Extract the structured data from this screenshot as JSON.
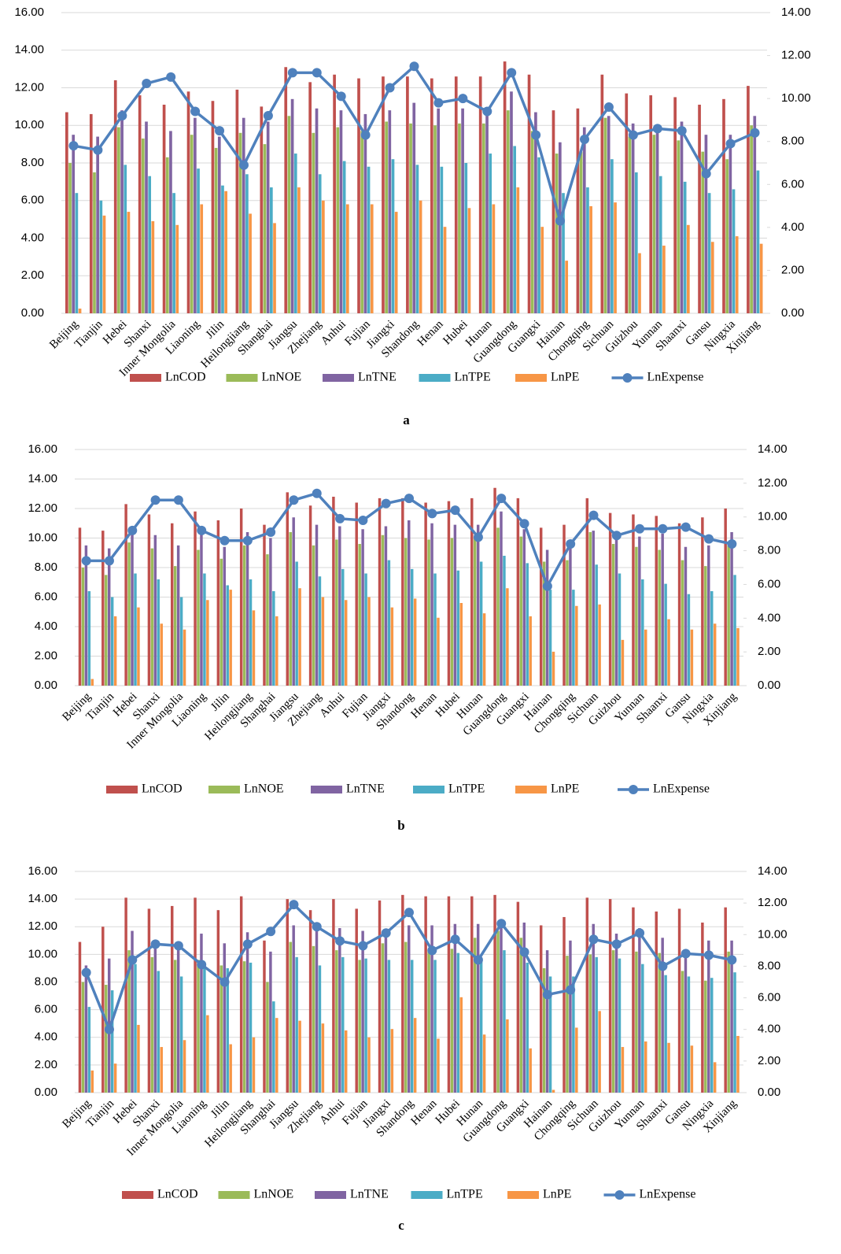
{
  "chart_data": [
    {
      "type": "bar",
      "label": "a",
      "categories": [
        "Beijing",
        "Tianjin",
        "Hebei",
        "Shanxi",
        "Inner Mongolia",
        "Liaoning",
        "Jilin",
        "Heilongjiang",
        "Shanghai",
        "Jiangsu",
        "Zhejiang",
        "Anhui",
        "Fujian",
        "Jiangxi",
        "Shandong",
        "Henan",
        "Hubei",
        "Hunan",
        "Guangdong",
        "Guangxi",
        "Hainan",
        "Chongqing",
        "Sichuan",
        "Guizhou",
        "Yunnan",
        "Shaanxi",
        "Gansu",
        "Ningxia",
        "Xinjiang"
      ],
      "ylim": [
        0,
        16
      ],
      "yticks": [
        {
          "value": 0,
          "label": "0.00"
        },
        {
          "value": 2,
          "label": "2.00"
        },
        {
          "value": 4,
          "label": "4.00"
        },
        {
          "value": 6,
          "label": "6.00"
        },
        {
          "value": 8,
          "label": "8.00"
        },
        {
          "value": 10,
          "label": "10.00"
        },
        {
          "value": 12,
          "label": "12.00"
        },
        {
          "value": 14,
          "label": "14.00"
        },
        {
          "value": 16,
          "label": "16.00"
        }
      ],
      "y2lim": [
        0,
        14
      ],
      "y2ticks": [
        {
          "value": 0,
          "label": "0.00"
        },
        {
          "value": 2,
          "label": "2.00"
        },
        {
          "value": 4,
          "label": "4.00"
        },
        {
          "value": 6,
          "label": "6.00"
        },
        {
          "value": 8,
          "label": "8.00"
        },
        {
          "value": 10,
          "label": "10.00"
        },
        {
          "value": 12,
          "label": "12.00"
        },
        {
          "value": 14,
          "label": "14.00"
        }
      ],
      "series": [
        {
          "name": "LnCOD",
          "color": "#c0504d",
          "values": [
            10.7,
            10.6,
            12.4,
            11.6,
            11.1,
            11.8,
            11.3,
            11.9,
            11.0,
            13.1,
            12.3,
            12.7,
            12.5,
            12.6,
            12.6,
            12.5,
            12.6,
            12.6,
            13.4,
            12.7,
            10.8,
            10.9,
            12.7,
            11.7,
            11.6,
            11.5,
            11.1,
            11.4,
            12.1
          ]
        },
        {
          "name": "LnNOE",
          "color": "#9bbb59",
          "values": [
            8.0,
            7.5,
            9.9,
            9.3,
            8.3,
            9.5,
            8.8,
            9.6,
            9.0,
            10.5,
            9.6,
            9.9,
            9.7,
            10.2,
            10.1,
            10.0,
            10.1,
            10.1,
            10.8,
            9.7,
            8.5,
            8.6,
            10.4,
            9.4,
            9.5,
            9.2,
            8.6,
            8.2,
            10.0
          ]
        },
        {
          "name": "LnTNE",
          "color": "#8064a2",
          "values": [
            9.5,
            9.4,
            10.8,
            10.2,
            9.7,
            10.4,
            9.4,
            10.4,
            10.2,
            11.4,
            10.9,
            10.8,
            10.6,
            10.8,
            11.2,
            10.9,
            10.9,
            10.9,
            11.8,
            10.7,
            9.1,
            9.9,
            10.5,
            10.1,
            9.9,
            10.2,
            9.5,
            9.5,
            10.5
          ]
        },
        {
          "name": "LnTPE",
          "color": "#4bacc6",
          "values": [
            6.4,
            6.0,
            7.9,
            7.3,
            6.4,
            7.7,
            6.8,
            7.4,
            6.7,
            8.5,
            7.4,
            8.1,
            7.8,
            8.2,
            7.9,
            7.8,
            8.0,
            8.5,
            8.9,
            8.3,
            6.4,
            6.7,
            8.2,
            7.5,
            7.3,
            7.0,
            6.4,
            6.6,
            7.6
          ]
        },
        {
          "name": "LnPE",
          "color": "#f79646",
          "values": [
            0.25,
            5.2,
            5.4,
            4.9,
            4.7,
            5.8,
            6.5,
            5.3,
            4.8,
            6.7,
            6.0,
            5.8,
            5.8,
            5.4,
            6.0,
            4.6,
            5.6,
            5.8,
            6.7,
            4.6,
            2.8,
            5.7,
            5.9,
            3.2,
            3.6,
            4.7,
            3.8,
            4.1,
            3.7
          ]
        },
        {
          "name": "LnExpense",
          "color": "#4f81bd",
          "type": "line",
          "axis": "y2",
          "values": [
            7.8,
            7.6,
            9.2,
            10.7,
            11.0,
            9.4,
            8.5,
            6.9,
            9.2,
            11.2,
            11.2,
            10.1,
            8.3,
            10.5,
            11.5,
            9.8,
            10.0,
            9.4,
            11.2,
            8.3,
            4.3,
            8.1,
            9.6,
            8.3,
            8.6,
            8.5,
            6.5,
            7.9,
            8.4
          ]
        }
      ]
    },
    {
      "type": "bar",
      "label": "b",
      "categories": [
        "Beijing",
        "Tianjin",
        "Hebei",
        "Shanxi",
        "Inner Mongolia",
        "Liaoning",
        "Jilin",
        "Heilongjiang",
        "Shanghai",
        "Jiangsu",
        "Zhejiang",
        "Anhui",
        "Fujian",
        "Jiangxi",
        "Shandong",
        "Henan",
        "Hubei",
        "Hunan",
        "Guangdong",
        "Guangxi",
        "Hainan",
        "Chongqing",
        "Sichuan",
        "Guizhou",
        "Yunnan",
        "Shaanxi",
        "Gansu",
        "Ningxia",
        "Xinjiang"
      ],
      "ylim": [
        0,
        16
      ],
      "yticks": [
        {
          "value": 0,
          "label": "0.00"
        },
        {
          "value": 2,
          "label": "2.00"
        },
        {
          "value": 4,
          "label": "4.00"
        },
        {
          "value": 6,
          "label": "6.00"
        },
        {
          "value": 8,
          "label": "8.00"
        },
        {
          "value": 10,
          "label": "10.00"
        },
        {
          "value": 12,
          "label": "12.00"
        },
        {
          "value": 14,
          "label": "14.00"
        },
        {
          "value": 16,
          "label": "16.00"
        }
      ],
      "y2lim": [
        0,
        14
      ],
      "y2ticks": [
        {
          "value": 0,
          "label": "0.00"
        },
        {
          "value": 2,
          "label": "2.00"
        },
        {
          "value": 4,
          "label": "4.00"
        },
        {
          "value": 6,
          "label": "6.00"
        },
        {
          "value": 8,
          "label": "8.00"
        },
        {
          "value": 10,
          "label": "10.00"
        },
        {
          "value": 12,
          "label": "12.00"
        },
        {
          "value": 14,
          "label": "14.00"
        }
      ],
      "series": [
        {
          "name": "LnCOD",
          "color": "#c0504d",
          "values": [
            10.7,
            10.5,
            12.3,
            11.6,
            11.0,
            11.8,
            11.2,
            12.0,
            10.9,
            13.1,
            12.2,
            12.8,
            12.4,
            12.7,
            12.7,
            12.4,
            12.5,
            12.7,
            13.4,
            12.7,
            10.7,
            10.9,
            12.7,
            11.7,
            11.6,
            11.5,
            11.0,
            11.4,
            12.0
          ]
        },
        {
          "name": "LnNOE",
          "color": "#9bbb59",
          "values": [
            8.0,
            7.5,
            9.7,
            9.3,
            8.1,
            9.2,
            8.6,
            9.5,
            8.9,
            10.4,
            9.5,
            9.9,
            9.6,
            10.2,
            10.0,
            9.9,
            10.0,
            10.1,
            10.7,
            10.1,
            8.4,
            8.5,
            10.4,
            9.6,
            9.4,
            9.2,
            8.5,
            8.1,
            9.5
          ]
        },
        {
          "name": "LnTNE",
          "color": "#8064a2",
          "values": [
            9.5,
            9.3,
            10.6,
            10.2,
            9.5,
            10.3,
            9.4,
            10.4,
            10.0,
            11.4,
            10.9,
            10.8,
            10.6,
            10.8,
            11.2,
            11.0,
            10.9,
            10.9,
            11.8,
            10.6,
            9.2,
            9.8,
            10.5,
            10.0,
            10.1,
            10.3,
            9.4,
            9.5,
            10.4
          ]
        },
        {
          "name": "LnTPE",
          "color": "#4bacc6",
          "values": [
            6.4,
            6.0,
            7.6,
            7.2,
            6.0,
            7.6,
            6.8,
            7.2,
            6.4,
            8.4,
            7.4,
            7.9,
            7.6,
            8.5,
            7.9,
            7.6,
            7.8,
            8.4,
            8.8,
            8.3,
            6.5,
            6.5,
            8.2,
            7.6,
            7.2,
            6.9,
            6.2,
            6.4,
            7.5
          ]
        },
        {
          "name": "LnPE",
          "color": "#f79646",
          "values": [
            0.45,
            4.7,
            5.3,
            4.2,
            3.8,
            5.8,
            6.5,
            5.1,
            4.7,
            6.6,
            6.0,
            5.8,
            6.0,
            5.3,
            5.9,
            4.6,
            5.6,
            4.9,
            6.6,
            4.7,
            2.3,
            5.4,
            5.5,
            3.1,
            3.8,
            4.5,
            3.8,
            4.2,
            3.9
          ]
        },
        {
          "name": "LnExpense",
          "color": "#4f81bd",
          "type": "line",
          "axis": "y2",
          "values": [
            7.4,
            7.4,
            9.2,
            11.0,
            11.0,
            9.2,
            8.6,
            8.6,
            9.1,
            11.0,
            11.4,
            9.9,
            9.8,
            10.8,
            11.1,
            10.2,
            10.4,
            8.8,
            11.1,
            9.6,
            5.9,
            8.4,
            10.1,
            8.9,
            9.3,
            9.3,
            9.4,
            8.7,
            8.4
          ]
        }
      ]
    },
    {
      "type": "bar",
      "label": "c",
      "categories": [
        "Beijing",
        "Tianjin",
        "Hebei",
        "Shanxi",
        "Inner Mongolia",
        "Liaoning",
        "Jilin",
        "Heilongjiang",
        "Shanghai",
        "Jiangsu",
        "Zhejiang",
        "Anhui",
        "Fujian",
        "Jiangxi",
        "Shandong",
        "Henan",
        "Hubei",
        "Hunan",
        "Guangdong",
        "Guangxi",
        "Hainan",
        "Chongqing",
        "Sichuan",
        "Guizhou",
        "Yunnan",
        "Shaanxi",
        "Gansu",
        "Ningxia",
        "Xinjiang"
      ],
      "ylim": [
        0,
        16
      ],
      "yticks": [
        {
          "value": 0,
          "label": "0.00"
        },
        {
          "value": 2,
          "label": "2.00"
        },
        {
          "value": 4,
          "label": "4.00"
        },
        {
          "value": 6,
          "label": "6.00"
        },
        {
          "value": 8,
          "label": "8.00"
        },
        {
          "value": 10,
          "label": "10.00"
        },
        {
          "value": 12,
          "label": "12.00"
        },
        {
          "value": 14,
          "label": "14.00"
        },
        {
          "value": 16,
          "label": "16.00"
        }
      ],
      "y2lim": [
        0,
        14
      ],
      "y2ticks": [
        {
          "value": 0,
          "label": "0.00"
        },
        {
          "value": 2,
          "label": "2.00"
        },
        {
          "value": 4,
          "label": "4.00"
        },
        {
          "value": 6,
          "label": "6.00"
        },
        {
          "value": 8,
          "label": "8.00"
        },
        {
          "value": 10,
          "label": "10.00"
        },
        {
          "value": 12,
          "label": "12.00"
        },
        {
          "value": 14,
          "label": "14.00"
        }
      ],
      "series": [
        {
          "name": "LnCOD",
          "color": "#c0504d",
          "values": [
            10.9,
            12.0,
            14.1,
            13.3,
            13.5,
            14.1,
            13.2,
            14.2,
            11.0,
            14.0,
            13.2,
            14.0,
            13.3,
            13.9,
            14.3,
            14.2,
            14.2,
            14.2,
            14.3,
            13.8,
            12.1,
            12.7,
            14.1,
            14.0,
            13.4,
            13.1,
            13.3,
            12.3,
            13.4
          ]
        },
        {
          "name": "LnNOE",
          "color": "#9bbb59",
          "values": [
            8.0,
            7.8,
            10.3,
            9.8,
            9.6,
            9.6,
            9.2,
            9.5,
            8.0,
            10.9,
            10.6,
            10.3,
            9.6,
            10.8,
            10.9,
            10.3,
            10.4,
            11.2,
            11.7,
            11.2,
            9.0,
            9.9,
            10.0,
            10.3,
            10.2,
            10.1,
            8.8,
            8.1,
            10.2
          ]
        },
        {
          "name": "LnTNE",
          "color": "#8064a2",
          "values": [
            9.2,
            9.7,
            11.7,
            11.0,
            10.7,
            11.5,
            10.8,
            11.6,
            10.2,
            12.1,
            11.8,
            11.9,
            11.7,
            11.7,
            12.1,
            12.1,
            12.2,
            12.2,
            12.5,
            12.3,
            10.3,
            11.0,
            12.2,
            11.5,
            11.9,
            11.2,
            10.1,
            11.0,
            11.0
          ]
        },
        {
          "name": "LnTPE",
          "color": "#4bacc6",
          "values": [
            6.2,
            7.4,
            9.3,
            8.8,
            8.4,
            9.1,
            9.0,
            9.4,
            6.6,
            9.8,
            9.2,
            9.8,
            9.7,
            9.6,
            9.6,
            9.6,
            10.1,
            9.7,
            10.3,
            9.4,
            8.4,
            8.4,
            9.8,
            9.7,
            9.3,
            8.5,
            8.4,
            8.3,
            8.7
          ]
        },
        {
          "name": "LnPE",
          "color": "#f79646",
          "values": [
            1.6,
            2.1,
            4.9,
            3.3,
            3.8,
            5.6,
            3.5,
            4.0,
            5.4,
            5.2,
            5.0,
            4.5,
            4.0,
            4.6,
            5.4,
            3.9,
            6.9,
            4.2,
            5.3,
            3.2,
            0.2,
            4.7,
            5.9,
            3.3,
            3.7,
            3.6,
            3.4,
            2.2,
            4.1
          ]
        },
        {
          "name": "LnExpense",
          "color": "#4f81bd",
          "type": "line",
          "axis": "y2",
          "values": [
            7.6,
            4.0,
            8.4,
            9.4,
            9.3,
            8.1,
            7.0,
            9.4,
            10.2,
            11.9,
            10.5,
            9.6,
            9.3,
            10.1,
            11.4,
            9.0,
            9.7,
            8.4,
            10.7,
            8.9,
            6.2,
            6.5,
            9.7,
            9.4,
            10.1,
            8.0,
            8.8,
            8.7,
            8.4
          ]
        }
      ]
    }
  ]
}
